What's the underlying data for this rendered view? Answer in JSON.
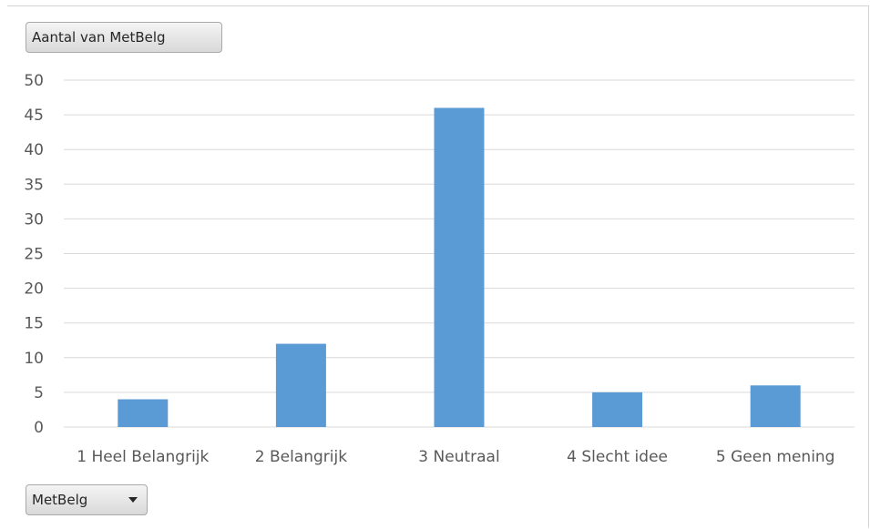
{
  "value_field_button": "Aantal van MetBelg",
  "axis_field_button": "MetBelg",
  "chart_data": {
    "type": "bar",
    "categories": [
      "1 Heel Belangrijk",
      "2 Belangrijk",
      "3 Neutraal",
      "4 Slecht idee",
      "5 Geen mening"
    ],
    "values": [
      4,
      12,
      46,
      5,
      6
    ],
    "title": "",
    "xlabel": "",
    "ylabel": "",
    "ylim": [
      0,
      50
    ],
    "yticks": [
      0,
      5,
      10,
      15,
      20,
      25,
      30,
      35,
      40,
      45,
      50
    ],
    "grid": true,
    "legend": "none",
    "bar_color": "#5b9bd5",
    "grid_color": "#d9d9d9"
  }
}
